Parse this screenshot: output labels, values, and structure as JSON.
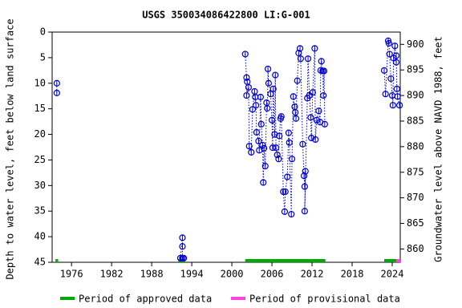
{
  "chart_data": {
    "type": "scatter",
    "title": "USGS 350034086422800 LI:G-001",
    "y_label": "Depth to water level, feet below land surface",
    "y2_label": "Groundwater level above NAVD 1988, feet",
    "xlim": [
      1973.1,
      2025.2
    ],
    "xticks": [
      1976,
      1982,
      1988,
      1994,
      2000,
      2006,
      2012,
      2018,
      2024
    ],
    "ylim": [
      45,
      0
    ],
    "yticks": [
      0,
      5,
      10,
      15,
      20,
      25,
      30,
      35,
      40,
      45
    ],
    "y2lim": [
      857.4,
      902.4
    ],
    "y2ticks": [
      860,
      865,
      870,
      875,
      880,
      885,
      890,
      895,
      900
    ],
    "series": [
      {
        "name": "Depth to water level",
        "color": "#0000cc",
        "x": [
          1973.8,
          1973.8,
          null,
          1992.3,
          1992.6,
          1992.6,
          1992.6,
          1992.8,
          null,
          2002.0,
          2002.2,
          2002.3,
          2002.2,
          2002.5,
          2002.6,
          2002.9,
          2003.1,
          2003.4,
          2003.5,
          2003.6,
          2003.7,
          2004.0,
          2004.1,
          2004.3,
          2004.4,
          2004.6,
          2004.7,
          2004.8,
          2005.0,
          2005.2,
          2005.3,
          2005.4,
          2005.5,
          2005.8,
          2006.0,
          2006.1,
          2006.2,
          2006.4,
          2006.5,
          2006.6,
          2006.8,
          2007.0,
          2007.1,
          2007.3,
          2007.4,
          2007.7,
          2007.9,
          2008.0,
          2008.3,
          2008.5,
          2008.6,
          2008.9,
          2009.0,
          2009.2,
          2009.4,
          2009.5,
          2009.6,
          2009.8,
          2010.0,
          2010.2,
          2010.3,
          2010.6,
          2010.8,
          2010.9,
          2011.0,
          2010.9,
          2011.3,
          2011.4,
          2011.6,
          2011.8,
          2011.9,
          2012.1,
          2012.4,
          2012.5,
          2012.7,
          2013.0,
          2013.2,
          2013.3,
          2013.4,
          2013.6,
          2013.7,
          2013.8,
          2013.9,
          null,
          2022.8,
          2023.0,
          2023.4,
          2023.5,
          2023.6,
          2023.8,
          2024.0,
          2024.1,
          2024.2,
          2024.4,
          2024.6,
          2024.6,
          2024.7,
          2024.8,
          2025.1
        ],
        "values": [
          10.0,
          11.9,
          null,
          44.2,
          40.2,
          41.9,
          44.2,
          44.2,
          null,
          4.3,
          8.9,
          9.7,
          12.4,
          10.8,
          22.3,
          23.5,
          15.1,
          11.6,
          12.7,
          14.3,
          19.6,
          21.3,
          23.1,
          12.7,
          18.0,
          22.1,
          29.4,
          22.7,
          26.2,
          13.8,
          14.9,
          7.2,
          10.0,
          12.1,
          17.2,
          22.6,
          11.1,
          20.0,
          8.4,
          22.6,
          24.0,
          24.8,
          20.3,
          16.9,
          16.5,
          31.2,
          35.1,
          31.2,
          28.3,
          19.7,
          21.6,
          35.6,
          24.8,
          12.6,
          14.6,
          15.7,
          16.9,
          9.5,
          4.1,
          3.2,
          5.2,
          21.9,
          28.1,
          30.2,
          27.2,
          35.0,
          12.9,
          5.2,
          12.4,
          16.7,
          20.7,
          11.8,
          3.2,
          21.0,
          17.2,
          15.4,
          17.6,
          7.5,
          5.7,
          7.6,
          12.4,
          7.6,
          18.0,
          null,
          7.5,
          12.1,
          1.7,
          2.2,
          4.3,
          9.1,
          12.4,
          14.3,
          5.1,
          2.7,
          5.9,
          4.6,
          11.1,
          12.6,
          14.3
        ]
      }
    ],
    "approved_name": "Period of approved data",
    "approved_color": "#00aa00",
    "approved_periods": [
      [
        1973.6,
        1974.0
      ],
      [
        1992.0,
        1993.0
      ],
      [
        2002.0,
        2014.0
      ],
      [
        2022.8,
        2024.6
      ]
    ],
    "provisional_name": "Period of provisional data",
    "provisional_color": "#ff44dd",
    "provisional_periods": [
      [
        2024.6,
        2025.2
      ]
    ]
  }
}
